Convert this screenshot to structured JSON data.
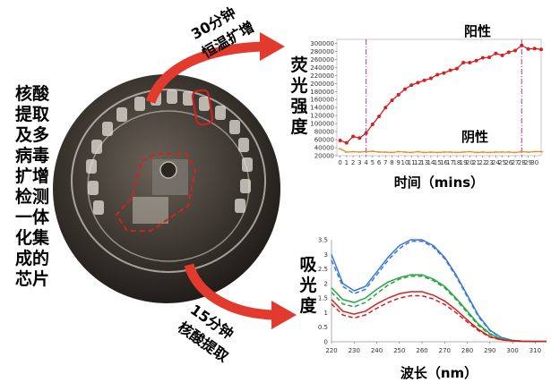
{
  "left_title": [
    "核酸",
    "提取",
    "及多",
    "病毒",
    "扩增",
    "检测",
    "一体",
    "化集",
    "成的",
    "芯片"
  ],
  "arrow_top": {
    "line1": "30分钟",
    "line2": "恒温扩增"
  },
  "arrow_bottom": {
    "line1": "15分钟",
    "line2": "核酸提取"
  },
  "colors": {
    "positive": "#d62020",
    "negative": "#f08a1c",
    "vline": "#c050c0",
    "blue": "#3b78d8",
    "green": "#28a745",
    "red": "#d62020"
  },
  "chart_data": [
    {
      "type": "line",
      "ylabel": "荧光强度",
      "xlabel": "时间（mins）",
      "xlim": [
        -0.5,
        31
      ],
      "ylim": [
        20000,
        310000
      ],
      "xticks": [
        "0",
        "1",
        "2",
        "3",
        "4",
        "5",
        "6",
        "7",
        "8",
        "9",
        "10",
        "11",
        "12",
        "13",
        "14",
        "15",
        "16",
        "17",
        "18",
        "19",
        "20",
        "21",
        "22",
        "23",
        "24",
        "25",
        "26",
        "27",
        "28",
        "29",
        "30"
      ],
      "yticks": [
        "20000",
        "40000",
        "60000",
        "80000",
        "100000",
        "120000",
        "140000",
        "160000",
        "180000",
        "200000",
        "220000",
        "240000",
        "260000",
        "280000",
        "300000"
      ],
      "vlines": [
        4,
        28
      ],
      "series": [
        {
          "name": "阳性",
          "x": [
            0,
            1,
            2,
            3,
            4,
            5,
            6,
            7,
            8,
            9,
            10,
            11,
            12,
            13,
            14,
            15,
            16,
            17,
            18,
            19,
            20,
            21,
            22,
            23,
            24,
            25,
            26,
            27,
            28,
            29,
            30,
            31
          ],
          "values": [
            58000,
            52000,
            68000,
            64000,
            76000,
            98000,
            118000,
            140000,
            158000,
            172000,
            186000,
            196000,
            202000,
            208000,
            213000,
            222000,
            226000,
            233000,
            237000,
            252000,
            252000,
            257000,
            264000,
            265000,
            275000,
            270000,
            278000,
            282000,
            295000,
            286000,
            287000,
            285000
          ]
        },
        {
          "name": "阴性",
          "x": [
            0,
            1,
            2,
            3,
            4,
            5,
            6,
            7,
            8,
            9,
            10,
            11,
            12,
            13,
            14,
            15,
            16,
            17,
            18,
            19,
            20,
            21,
            22,
            23,
            24,
            25,
            26,
            27,
            28,
            29,
            30,
            31
          ],
          "values": [
            37000,
            29000,
            30000,
            29000,
            30000,
            31000,
            29000,
            29000,
            28000,
            30000,
            29000,
            28000,
            30000,
            28000,
            29000,
            28000,
            29000,
            29000,
            28000,
            29000,
            30000,
            28000,
            29000,
            28000,
            29000,
            29000,
            29000,
            28000,
            30000,
            29000,
            30000,
            30000
          ]
        }
      ]
    },
    {
      "type": "line",
      "ylabel": "吸光度",
      "xlabel": "波长（nm）",
      "xlim": [
        220,
        315
      ],
      "ylim": [
        0,
        3.5
      ],
      "xticks": [
        "220",
        "230",
        "240",
        "250",
        "260",
        "270",
        "280",
        "290",
        "300",
        "310"
      ],
      "yticks": [
        "0",
        "0.5",
        "1",
        "1.5",
        "2",
        "2.5",
        "3",
        "3.5"
      ],
      "series": [
        {
          "x": [
            220,
            225,
            230,
            235,
            240,
            245,
            250,
            255,
            260,
            265,
            270,
            275,
            280,
            285,
            290,
            295,
            300,
            305,
            310,
            315
          ],
          "values": [
            3.0,
            2.0,
            1.75,
            1.9,
            2.4,
            2.9,
            3.3,
            3.5,
            3.5,
            3.3,
            2.9,
            2.3,
            1.6,
            0.9,
            0.4,
            0.15,
            0.05,
            0.02,
            0.01,
            0.01
          ],
          "color": "blue",
          "dash": false
        },
        {
          "x": [
            220,
            225,
            230,
            235,
            240,
            245,
            250,
            255,
            260,
            265,
            270,
            275,
            280,
            285,
            290,
            295,
            300,
            305,
            310,
            315
          ],
          "values": [
            2.8,
            1.9,
            1.65,
            1.8,
            2.3,
            2.8,
            3.2,
            3.45,
            3.45,
            3.25,
            2.85,
            2.25,
            1.55,
            0.85,
            0.38,
            0.14,
            0.05,
            0.02,
            0.01,
            0.01
          ],
          "color": "blue",
          "dash": true
        },
        {
          "x": [
            220,
            225,
            230,
            235,
            240,
            245,
            250,
            255,
            260,
            265,
            270,
            275,
            280,
            285,
            290,
            295,
            300,
            305,
            310,
            315
          ],
          "values": [
            1.85,
            1.45,
            1.35,
            1.5,
            1.8,
            2.05,
            2.2,
            2.3,
            2.3,
            2.15,
            1.9,
            1.5,
            1.05,
            0.6,
            0.28,
            0.1,
            0.04,
            0.02,
            0.01,
            0.01
          ],
          "color": "green",
          "dash": false
        },
        {
          "x": [
            220,
            225,
            230,
            235,
            240,
            245,
            250,
            255,
            260,
            265,
            270,
            275,
            280,
            285,
            290,
            295,
            300,
            305,
            310,
            315
          ],
          "values": [
            1.7,
            1.3,
            1.2,
            1.35,
            1.65,
            1.95,
            2.15,
            2.25,
            2.25,
            2.1,
            1.85,
            1.45,
            1.0,
            0.55,
            0.25,
            0.09,
            0.04,
            0.02,
            0.01,
            0.01
          ],
          "color": "green",
          "dash": true
        },
        {
          "x": [
            220,
            225,
            230,
            235,
            240,
            245,
            250,
            255,
            260,
            265,
            270,
            275,
            280,
            285,
            290,
            295,
            300,
            305,
            310,
            315
          ],
          "values": [
            1.45,
            1.05,
            0.95,
            1.05,
            1.3,
            1.5,
            1.65,
            1.72,
            1.72,
            1.6,
            1.4,
            1.1,
            0.75,
            0.42,
            0.18,
            0.07,
            0.03,
            0.01,
            0.01,
            0.01
          ],
          "color": "red",
          "dash": false
        },
        {
          "x": [
            220,
            225,
            230,
            235,
            240,
            245,
            250,
            255,
            260,
            265,
            270,
            275,
            280,
            285,
            290,
            295,
            300,
            305,
            310,
            315
          ],
          "values": [
            1.3,
            0.92,
            0.82,
            0.92,
            1.15,
            1.35,
            1.5,
            1.58,
            1.58,
            1.47,
            1.28,
            1.0,
            0.68,
            0.38,
            0.16,
            0.06,
            0.03,
            0.01,
            0.01,
            0.01
          ],
          "color": "red",
          "dash": true
        }
      ]
    }
  ]
}
